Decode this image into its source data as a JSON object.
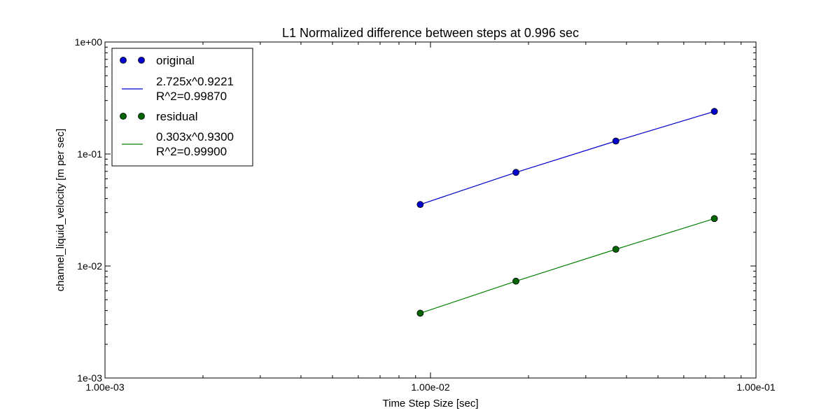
{
  "chart_data": {
    "type": "scatter",
    "title": "L1 Normalized difference between steps at 0.996 sec",
    "xlabel": "Time Step Size [sec]",
    "ylabel": "channel_liquid_velocity [m per sec]",
    "xscale": "log",
    "yscale": "log",
    "xlim": [
      0.001,
      0.1
    ],
    "ylim": [
      0.001,
      1
    ],
    "xticks": [
      {
        "value": 0.001,
        "label": "1.00e-03"
      },
      {
        "value": 0.01,
        "label": "1.00e-02"
      },
      {
        "value": 0.1,
        "label": "1.00e-01"
      }
    ],
    "yticks": [
      {
        "value": 1,
        "label": "1e+00"
      },
      {
        "value": 0.1,
        "label": "1e-01"
      },
      {
        "value": 0.01,
        "label": "1e-02"
      },
      {
        "value": 0.001,
        "label": "1e-03"
      }
    ],
    "grid": false,
    "legend_position": "top-left",
    "series": [
      {
        "name": "original",
        "kind": "points",
        "color": "#0000cc",
        "x": [
          0.0093,
          0.0183,
          0.0371,
          0.0745
        ],
        "y": [
          0.0354,
          0.0685,
          0.1305,
          0.24
        ]
      },
      {
        "name": "2.725x^0.9221",
        "name_line2": "R^2=0.99870",
        "kind": "fit",
        "color": "#0000cc",
        "x": [
          0.0093,
          0.0183,
          0.0371,
          0.0745
        ],
        "y": [
          0.0354,
          0.0685,
          0.1305,
          0.24
        ]
      },
      {
        "name": "residual",
        "kind": "points",
        "color": "#006400",
        "x": [
          0.0093,
          0.0183,
          0.0371,
          0.0745
        ],
        "y": [
          0.00379,
          0.00732,
          0.0141,
          0.0265
        ]
      },
      {
        "name": "0.303x^0.9300",
        "name_line2": "R^2=0.99900",
        "kind": "fit",
        "color": "#008000",
        "x": [
          0.0093,
          0.0183,
          0.0371,
          0.0745
        ],
        "y": [
          0.00379,
          0.00732,
          0.0141,
          0.0265
        ]
      }
    ]
  }
}
